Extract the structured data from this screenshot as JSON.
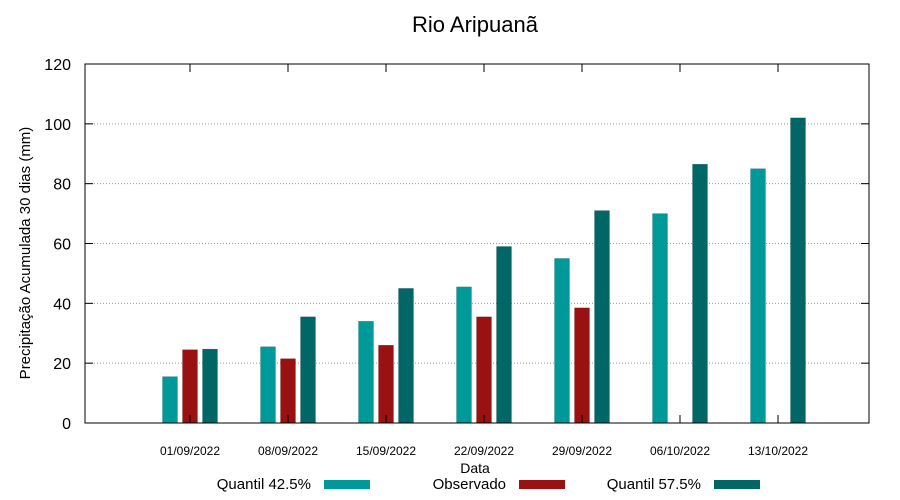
{
  "chart_data": {
    "type": "bar",
    "title": "Rio Aripuanã",
    "xlabel": "Data",
    "ylabel": "Precipitação Acumulada 30 dias (mm)",
    "ylim": [
      0,
      120
    ],
    "yticks": [
      0,
      20,
      40,
      60,
      80,
      100,
      120
    ],
    "grid": true,
    "legend_position": "bottom",
    "categories": [
      "01/09/2022",
      "08/09/2022",
      "15/09/2022",
      "22/09/2022",
      "29/09/2022",
      "06/10/2022",
      "13/10/2022"
    ],
    "series": [
      {
        "name": "Quantil 42.5%",
        "color": "#009999",
        "values": [
          15.5,
          25.5,
          34,
          45.5,
          55,
          70,
          85
        ]
      },
      {
        "name": "Observado",
        "color": "#991111",
        "values": [
          24.5,
          21.5,
          26,
          35.5,
          38.5,
          null,
          null
        ]
      },
      {
        "name": "Quantil 57.5%",
        "color": "#006666",
        "values": [
          24.7,
          35.5,
          45,
          59,
          71,
          86.5,
          102
        ]
      }
    ]
  }
}
